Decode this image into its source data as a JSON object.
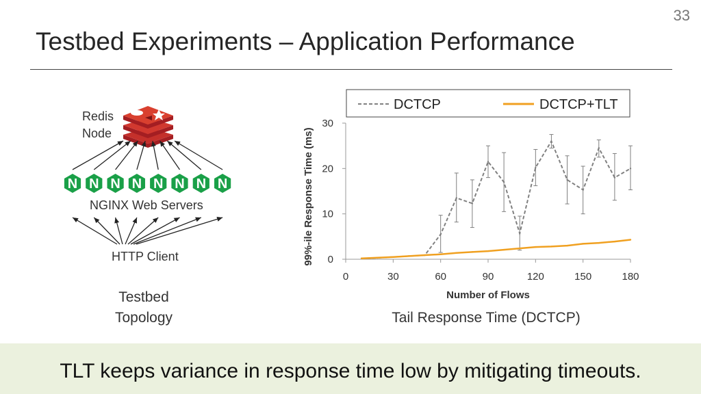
{
  "slide": {
    "number": "33",
    "title": "Testbed Experiments – Application Performance",
    "takeaway": "TLT keeps variance in response time low by mitigating timeouts."
  },
  "topology": {
    "redis_label_line1": "Redis",
    "redis_label_line2": "Node",
    "nginx_label": "NGINX Web Servers",
    "nginx_letter": "N",
    "nginx_count": 8,
    "http_label": "HTTP Client",
    "caption_line1": "Testbed",
    "caption_line2": "Topology",
    "colors": {
      "redis": "#c4302b",
      "nginx": "#1aa048"
    },
    "icons": [
      "redis-logo-icon",
      "nginx-logo-icon"
    ]
  },
  "chart_caption": "Tail Response Time (DCTCP)",
  "chart_data": {
    "type": "line",
    "title": "",
    "xlabel": "Number of Flows",
    "ylabel": "99%-ile Response Time (ms)",
    "xlim": [
      0,
      180
    ],
    "ylim": [
      0,
      30
    ],
    "xticks": [
      0,
      30,
      60,
      90,
      120,
      150,
      180
    ],
    "yticks": [
      0,
      10,
      20,
      30
    ],
    "grid": false,
    "legend": "top",
    "series": [
      {
        "name": "DCTCP",
        "style": "dashed",
        "color": "#808080",
        "x": [
          10,
          20,
          30,
          40,
          50,
          60,
          70,
          80,
          90,
          100,
          110,
          120,
          130,
          140,
          150,
          160,
          170,
          180
        ],
        "y": [
          0.2,
          0.3,
          0.5,
          0.7,
          0.9,
          5.5,
          13.5,
          12.3,
          21.5,
          17,
          5.7,
          20.2,
          26,
          17.5,
          15.3,
          24.5,
          18,
          20
        ],
        "err_low": [
          0,
          0,
          0,
          0,
          0,
          1.5,
          8.2,
          7,
          18,
          10.5,
          2,
          16.2,
          24.5,
          12.2,
          10,
          22.5,
          13,
          15.3
        ],
        "err_high": [
          0,
          0,
          0,
          0,
          0,
          9.7,
          19,
          17.5,
          25,
          23.5,
          9.5,
          24.2,
          27.5,
          22.8,
          20.5,
          26.3,
          23.3,
          25
        ]
      },
      {
        "name": "DCTCP+TLT",
        "style": "solid",
        "color": "#f0a020",
        "x": [
          10,
          20,
          30,
          40,
          50,
          60,
          70,
          80,
          90,
          100,
          110,
          120,
          130,
          140,
          150,
          160,
          170,
          180
        ],
        "y": [
          0.2,
          0.35,
          0.5,
          0.7,
          0.9,
          1.1,
          1.4,
          1.6,
          1.8,
          2.1,
          2.4,
          2.7,
          2.8,
          3.0,
          3.4,
          3.6,
          3.9,
          4.3
        ]
      }
    ]
  }
}
